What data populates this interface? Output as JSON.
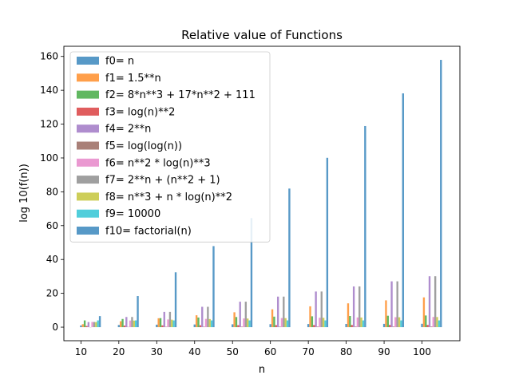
{
  "chart_data": {
    "type": "bar",
    "title": "Relative value of Functions",
    "xlabel": "n",
    "ylabel": "log 10(f(n))",
    "x": [
      10,
      20,
      30,
      40,
      50,
      60,
      70,
      80,
      90,
      100
    ],
    "xticks": [
      "10",
      "20",
      "30",
      "40",
      "50",
      "60",
      "70",
      "80",
      "90",
      "100"
    ],
    "yticks": [
      "0",
      "20",
      "40",
      "60",
      "80",
      "100",
      "120",
      "140",
      "160"
    ],
    "ylim": [
      -8,
      166
    ],
    "xlim": [
      5.5,
      110
    ],
    "legend_position": "upper-left",
    "series": [
      {
        "name": "f0= n",
        "color": "#1f77b4",
        "values": [
          1.0,
          1.3,
          1.48,
          1.6,
          1.7,
          1.78,
          1.85,
          1.9,
          1.95,
          2.0
        ]
      },
      {
        "name": "f1= 1.5**n",
        "color": "#ff7f0e",
        "values": [
          1.76,
          3.52,
          5.28,
          7.04,
          8.8,
          10.57,
          12.33,
          14.09,
          15.85,
          17.61
        ]
      },
      {
        "name": "f2= 8*n**3 + 17*n**2 + 111",
        "color": "#2ca02c",
        "values": [
          3.99,
          4.84,
          5.35,
          5.71,
          6.0,
          6.23,
          6.43,
          6.61,
          6.76,
          6.91
        ]
      },
      {
        "name": "f3= log(n)**2",
        "color": "#d62728",
        "values": [
          0.72,
          0.95,
          1.06,
          1.13,
          1.18,
          1.22,
          1.26,
          1.28,
          1.31,
          1.33
        ]
      },
      {
        "name": "f4= 2**n",
        "color": "#9467bd",
        "values": [
          3.01,
          6.02,
          9.03,
          12.04,
          15.05,
          18.06,
          21.07,
          24.08,
          27.09,
          30.1
        ]
      },
      {
        "name": "f5= log(log(n))",
        "color": "#8c564b",
        "values": [
          -0.08,
          0.13,
          0.23,
          0.27,
          0.29,
          0.31,
          0.33,
          0.34,
          0.35,
          0.36
        ]
      },
      {
        "name": "f6= n**2 * log(n)**3",
        "color": "#e377c2",
        "values": [
          3.09,
          3.94,
          4.55,
          4.89,
          5.16,
          5.39,
          5.58,
          5.75,
          5.9,
          6.03
        ]
      },
      {
        "name": "f7= 2**n + (n**2 + 1)",
        "color": "#7f7f7f",
        "values": [
          3.05,
          6.02,
          9.03,
          12.04,
          15.05,
          18.06,
          21.07,
          24.08,
          27.09,
          30.1
        ]
      },
      {
        "name": "f8= n**3 + n * log(n)**2",
        "color": "#bcbd22",
        "values": [
          3.0,
          3.9,
          4.43,
          4.8,
          5.1,
          5.34,
          5.54,
          5.71,
          5.86,
          6.0
        ]
      },
      {
        "name": "f9= 10000",
        "color": "#17becf",
        "values": [
          4,
          4,
          4,
          4,
          4,
          4,
          4,
          4,
          4,
          4
        ]
      },
      {
        "name": "f10= factorial(n)",
        "color": "#1f77b4",
        "values": [
          6.56,
          18.39,
          32.42,
          47.91,
          64.48,
          81.92,
          100.08,
          118.86,
          138.17,
          157.97
        ]
      }
    ]
  }
}
